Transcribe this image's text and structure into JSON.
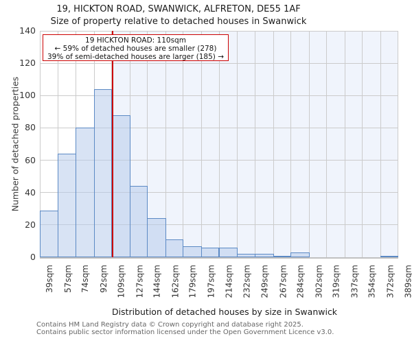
{
  "title": "19, HICKTON ROAD, SWANWICK, ALFRETON, DE55 1AF",
  "subtitle": "Size of property relative to detached houses in Swanwick",
  "annotation": {
    "line1": "19 HICKTON ROAD: 110sqm",
    "line2": "← 59% of detached houses are smaller (278)",
    "line3": "39% of semi-detached houses are larger (185) →"
  },
  "chart_data": {
    "type": "bar",
    "title": "19, HICKTON ROAD, SWANWICK, ALFRETON, DE55 1AF — Size of property relative to detached houses in Swanwick",
    "xlabel": "Distribution of detached houses by size in Swanwick",
    "ylabel": "Number of detached properties",
    "bin_edges_sqm": [
      39,
      57,
      74,
      92,
      109,
      127,
      144,
      162,
      179,
      197,
      214,
      232,
      249,
      267,
      284,
      302,
      319,
      337,
      354,
      372,
      389
    ],
    "x_tick_labels": [
      "39sqm",
      "57sqm",
      "74sqm",
      "92sqm",
      "109sqm",
      "127sqm",
      "144sqm",
      "162sqm",
      "179sqm",
      "197sqm",
      "214sqm",
      "232sqm",
      "249sqm",
      "267sqm",
      "284sqm",
      "302sqm",
      "319sqm",
      "337sqm",
      "354sqm",
      "372sqm",
      "389sqm"
    ],
    "values": [
      29,
      64,
      80,
      104,
      88,
      44,
      24,
      11,
      7,
      6,
      6,
      2,
      2,
      1,
      3,
      0,
      0,
      0,
      0,
      1
    ],
    "y_ticks": [
      0,
      20,
      40,
      60,
      80,
      100,
      120,
      140
    ],
    "ylim": [
      0,
      140
    ],
    "grid": true,
    "marker_value_sqm": 110,
    "colors": {
      "bar_fill": "#d8e3f4",
      "bar_border": "#5b89c4",
      "marker_line": "#cc0000",
      "annotation_border": "#cc0000",
      "shaded_region": "#f0f4fc",
      "gridline": "#cbcbcb"
    }
  },
  "footer": {
    "line1": "Contains HM Land Registry data © Crown copyright and database right 2025.",
    "line2": "Contains public sector information licensed under the Open Government Licence v3.0."
  }
}
